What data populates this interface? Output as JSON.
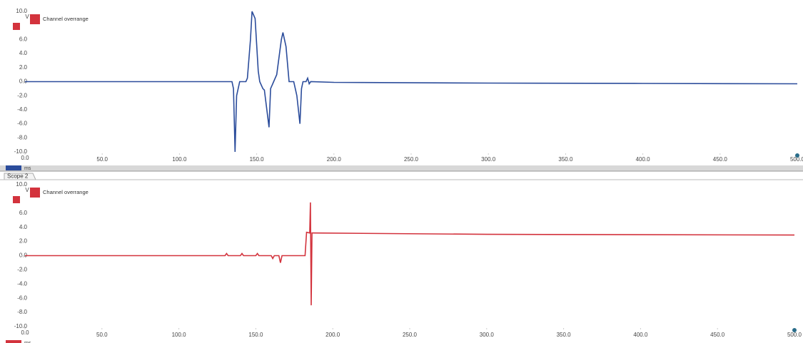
{
  "chart_data": [
    {
      "type": "line",
      "annotation": "Channel overrange",
      "y_unit": "V",
      "x_unit": "ms",
      "x": [
        0,
        134,
        135,
        136,
        137,
        139,
        143,
        144,
        146,
        147,
        149,
        151,
        152,
        154,
        155,
        158,
        159,
        161,
        163,
        166,
        167,
        169,
        171,
        172,
        174,
        175,
        176,
        178,
        179,
        180,
        182,
        183,
        184,
        185,
        200,
        300,
        400,
        500
      ],
      "series": [
        {
          "color": "#2b4c9b",
          "values": [
            0,
            0,
            -1,
            -10,
            -2,
            0,
            0,
            0.5,
            6,
            10,
            9,
            1.5,
            0,
            -1,
            -1.2,
            -6.5,
            -1,
            0,
            1,
            6,
            7,
            5,
            0,
            0,
            0,
            -1,
            -2,
            -6,
            -1,
            0,
            0,
            0.5,
            -0.3,
            0,
            -0.1,
            -0.2,
            -0.25,
            -0.3
          ]
        }
      ],
      "xlim": [
        0,
        500
      ],
      "ylim": [
        -10,
        10
      ],
      "xticks": [
        {
          "value": 0,
          "label": "0.0"
        },
        {
          "value": 50,
          "label": "50.0"
        },
        {
          "value": 100,
          "label": "100.0"
        },
        {
          "value": 150,
          "label": "150.0"
        },
        {
          "value": 200,
          "label": "200.0"
        },
        {
          "value": 250,
          "label": "250.0"
        },
        {
          "value": 300,
          "label": "300.0"
        },
        {
          "value": 350,
          "label": "350.0"
        },
        {
          "value": 400,
          "label": "400.0"
        },
        {
          "value": 450,
          "label": "450.0"
        },
        {
          "value": 500,
          "label": "500.0"
        }
      ],
      "yticks": [
        {
          "value": 10,
          "label": "10.0"
        },
        {
          "value": 6,
          "label": "6.0"
        },
        {
          "value": 4,
          "label": "4.0"
        },
        {
          "value": 2,
          "label": "2.0"
        },
        {
          "value": 0,
          "label": "0.0"
        },
        {
          "value": -2,
          "label": "-2.0"
        },
        {
          "value": -4,
          "label": "-4.0"
        },
        {
          "value": -6,
          "label": "-6.0"
        },
        {
          "value": -8,
          "label": "-8.0"
        },
        {
          "value": -10,
          "label": "-10.0"
        }
      ]
    },
    {
      "type": "line",
      "title": "Scope 2",
      "annotation": "Channel overrange",
      "y_unit": "V",
      "x_unit": "ms",
      "x": [
        0,
        130,
        131,
        132,
        140,
        141,
        142,
        150,
        151,
        152,
        160,
        161,
        162,
        165,
        166,
        167,
        182,
        183,
        185,
        185.5,
        186,
        186.5,
        187,
        300,
        500
      ],
      "series": [
        {
          "color": "#d3333d",
          "values": [
            0,
            0,
            0.3,
            0,
            0,
            0.3,
            0,
            0,
            0.3,
            0,
            0,
            -0.4,
            0,
            0,
            -1,
            0,
            0,
            3.3,
            3.2,
            7.5,
            -7,
            3.2,
            3.2,
            3.0,
            2.9
          ]
        }
      ],
      "xlim": [
        0,
        500
      ],
      "ylim": [
        -10,
        10
      ],
      "xticks": [
        {
          "value": 0,
          "label": "0.0"
        },
        {
          "value": 50,
          "label": "50.0"
        },
        {
          "value": 100,
          "label": "100.0"
        },
        {
          "value": 150,
          "label": "150.0"
        },
        {
          "value": 200,
          "label": "200.0"
        },
        {
          "value": 250,
          "label": "250.0"
        },
        {
          "value": 300,
          "label": "300.0"
        },
        {
          "value": 350,
          "label": "350.0"
        },
        {
          "value": 400,
          "label": "400.0"
        },
        {
          "value": 450,
          "label": "450.0"
        },
        {
          "value": 500,
          "label": "500.0"
        }
      ],
      "yticks": [
        {
          "value": 10,
          "label": "10.0"
        },
        {
          "value": 6,
          "label": "6.0"
        },
        {
          "value": 4,
          "label": "4.0"
        },
        {
          "value": 2,
          "label": "2.0"
        },
        {
          "value": 0,
          "label": "0.0"
        },
        {
          "value": -2,
          "label": "-2.0"
        },
        {
          "value": -4,
          "label": "-4.0"
        },
        {
          "value": -6,
          "label": "-6.0"
        },
        {
          "value": -8,
          "label": "-8.0"
        },
        {
          "value": -10,
          "label": "-10.0"
        }
      ]
    }
  ]
}
